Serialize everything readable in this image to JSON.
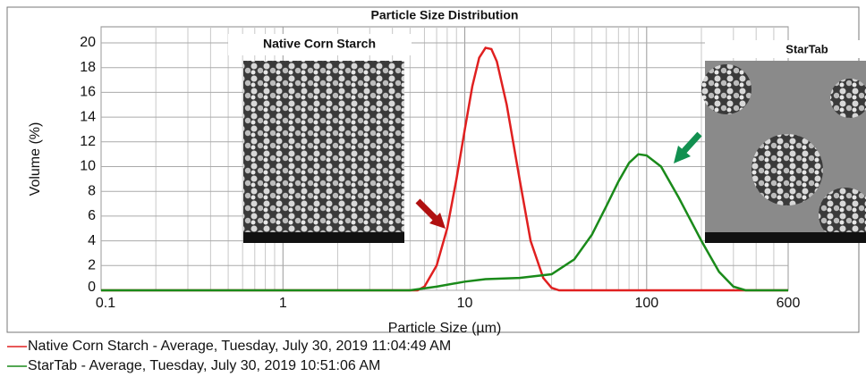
{
  "chart_data": {
    "type": "line",
    "title": "Particle Size Distribution",
    "xlabel": "Particle Size (µm)",
    "ylabel": "Volume (%)",
    "xscale": "log",
    "xlim": [
      0.1,
      600
    ],
    "xticks": [
      0.1,
      1,
      10,
      100,
      600
    ],
    "x_minor_ticks": [
      0.2,
      0.3,
      0.4,
      0.5,
      0.6,
      0.7,
      0.8,
      0.9,
      2,
      3,
      4,
      5,
      6,
      7,
      8,
      9,
      20,
      30,
      40,
      50,
      60,
      70,
      80,
      90,
      200,
      300,
      400,
      500
    ],
    "ylim": [
      0,
      21.3
    ],
    "yticks": [
      0,
      2,
      4,
      6,
      8,
      10,
      12,
      14,
      16,
      18,
      20
    ],
    "grid": true,
    "annotations": [
      "Native Corn Starch",
      "StarTab"
    ],
    "series": [
      {
        "name": "Native Corn Starch - Average, Tuesday, July 30, 2019 11:04:49 AM",
        "color": "#e02020",
        "x": [
          0.1,
          5.5,
          6,
          7,
          8,
          9,
          10,
          11,
          12,
          13,
          14,
          15,
          17,
          20,
          23,
          27,
          30,
          33,
          600
        ],
        "values": [
          0,
          0,
          0.3,
          2,
          5,
          9,
          13,
          16.5,
          18.8,
          19.6,
          19.5,
          18.5,
          15,
          9,
          4,
          1,
          0.2,
          0,
          0
        ]
      },
      {
        "name": "StarTab - Average, Tuesday, July 30, 2019 10:51:06 AM",
        "color": "#1a8a1a",
        "x": [
          0.1,
          5,
          7,
          10,
          13,
          20,
          30,
          40,
          50,
          60,
          70,
          80,
          90,
          100,
          120,
          150,
          200,
          250,
          300,
          350,
          600
        ],
        "values": [
          0,
          0,
          0.3,
          0.7,
          0.9,
          1.0,
          1.3,
          2.5,
          4.5,
          6.8,
          8.8,
          10.3,
          11,
          10.9,
          10,
          7.5,
          4,
          1.5,
          0.3,
          0,
          0
        ]
      }
    ]
  }
}
